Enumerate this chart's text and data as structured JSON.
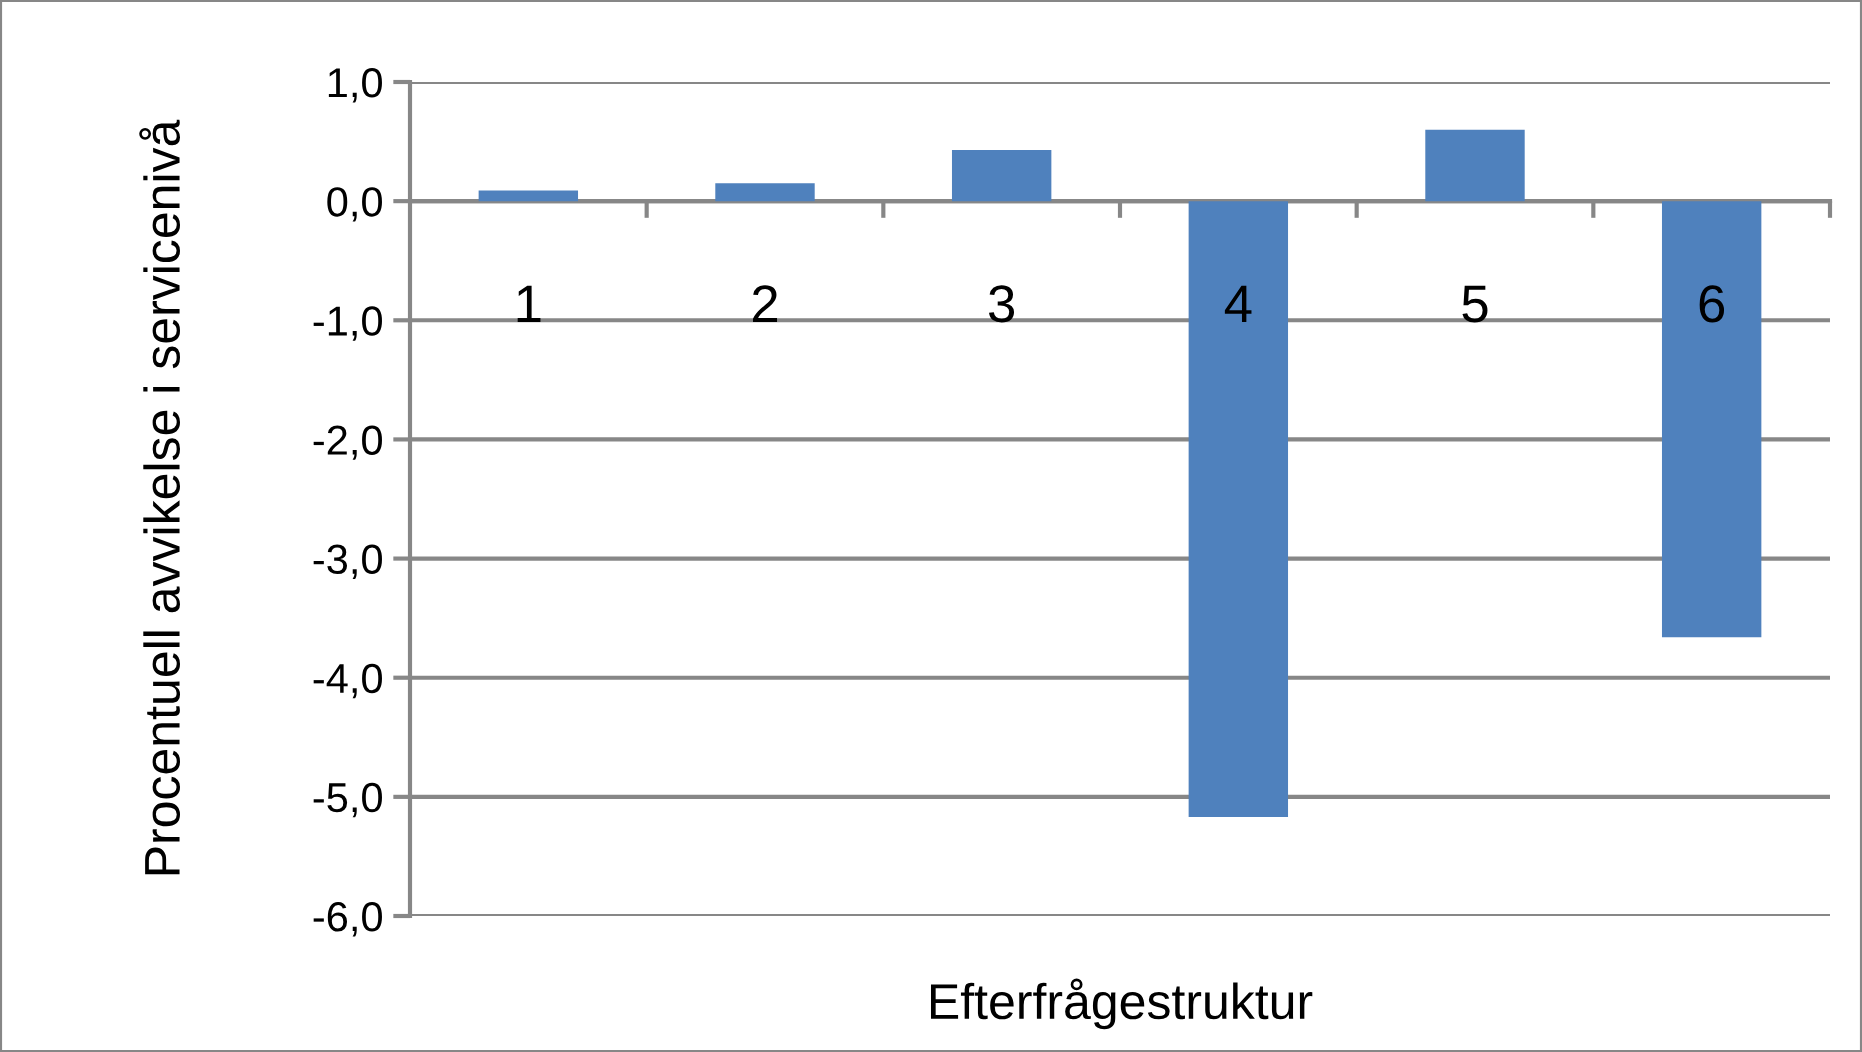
{
  "chart_data": {
    "type": "bar",
    "xlabel": "Efterfrågestruktur",
    "ylabel": "Procentuell avvikelse i servicenivå",
    "categories": [
      "1",
      "2",
      "3",
      "4",
      "5",
      "6"
    ],
    "values": [
      0.09,
      0.15,
      0.43,
      -5.17,
      0.6,
      -3.66
    ],
    "color": "#4f81bd",
    "ylim": [
      -6,
      1
    ],
    "yticks": [
      {
        "value": -6,
        "label": "-6,0"
      },
      {
        "value": -5,
        "label": "-5,0"
      },
      {
        "value": -4,
        "label": "-4,0"
      },
      {
        "value": -3,
        "label": "-3,0"
      },
      {
        "value": -2,
        "label": "-2,0"
      },
      {
        "value": -1,
        "label": "-1,0"
      },
      {
        "value": 0,
        "label": "0,0"
      },
      {
        "value": 1,
        "label": "1,0"
      }
    ],
    "grid": "y",
    "legend": false
  }
}
